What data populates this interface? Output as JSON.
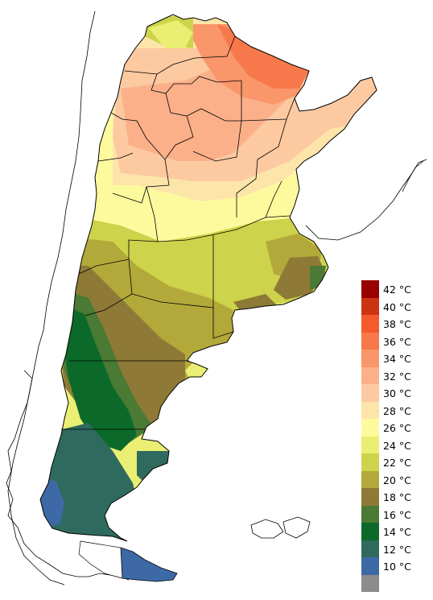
{
  "legend": {
    "unit": "°C",
    "items": [
      {
        "label": "42 °C",
        "color": "#990000"
      },
      {
        "label": "40 °C",
        "color": "#cc3311"
      },
      {
        "label": "38 °C",
        "color": "#f45a2b"
      },
      {
        "label": "36 °C",
        "color": "#f7794b"
      },
      {
        "label": "34 °C",
        "color": "#f9966a"
      },
      {
        "label": "32 °C",
        "color": "#fbb08a"
      },
      {
        "label": "30 °C",
        "color": "#fcc9a1"
      },
      {
        "label": "28 °C",
        "color": "#fde5aa"
      },
      {
        "label": "26 °C",
        "color": "#fdfa9e"
      },
      {
        "label": "24 °C",
        "color": "#eaef73"
      },
      {
        "label": "22 °C",
        "color": "#cdd34a"
      },
      {
        "label": "20 °C",
        "color": "#b3a93a"
      },
      {
        "label": "18 °C",
        "color": "#8e7a36"
      },
      {
        "label": "16 °C",
        "color": "#4a7a34"
      },
      {
        "label": "14 °C",
        "color": "#0b6a2a"
      },
      {
        "label": "12 °C",
        "color": "#2f6a5e"
      },
      {
        "label": "10 °C",
        "color": "#3d6aa6"
      },
      {
        "label": "",
        "color": "#8c8c8c"
      }
    ]
  },
  "map": {
    "country_outline_color": "#000000",
    "neighbor_outline_color": "#000000",
    "background_color": "#ffffff"
  }
}
